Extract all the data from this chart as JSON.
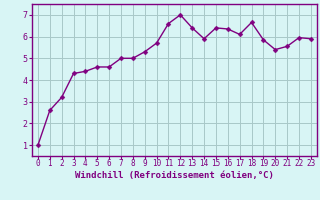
{
  "x": [
    0,
    1,
    2,
    3,
    4,
    5,
    6,
    7,
    8,
    9,
    10,
    11,
    12,
    13,
    14,
    15,
    16,
    17,
    18,
    19,
    20,
    21,
    22,
    23
  ],
  "y": [
    1.0,
    2.6,
    3.2,
    4.3,
    4.4,
    4.6,
    4.6,
    5.0,
    5.0,
    5.3,
    5.7,
    6.6,
    7.0,
    6.4,
    5.9,
    6.4,
    6.35,
    6.1,
    6.65,
    5.85,
    5.4,
    5.55,
    5.95,
    5.9
  ],
  "line_color": "#800080",
  "marker": "D",
  "marker_size": 2.5,
  "line_width": 1.0,
  "bg_color": "#d8f5f5",
  "grid_color": "#a8c8c8",
  "xlabel": "Windchill (Refroidissement éolien,°C)",
  "xlabel_fontsize": 6.5,
  "ylabel_ticks": [
    1,
    2,
    3,
    4,
    5,
    6,
    7
  ],
  "xtick_labels": [
    "0",
    "1",
    "2",
    "3",
    "4",
    "5",
    "6",
    "7",
    "8",
    "9",
    "10",
    "11",
    "12",
    "13",
    "14",
    "15",
    "16",
    "17",
    "18",
    "19",
    "20",
    "21",
    "22",
    "23"
  ],
  "xlim": [
    -0.5,
    23.5
  ],
  "ylim": [
    0.5,
    7.5
  ],
  "tick_color": "#800080",
  "tick_fontsize": 5.5,
  "label_color": "#800080",
  "spine_color": "#800080"
}
